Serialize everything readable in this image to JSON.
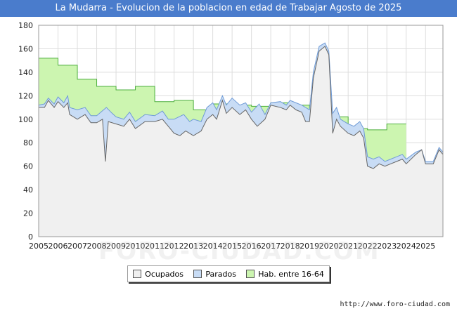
{
  "title": "La Mudarra - Evolucion de la poblacion en edad de Trabajar Agosto de 2025",
  "footer_url": "http://www.foro-ciudad.com",
  "watermark": "FORO-CIUDAD.COM",
  "colors": {
    "title_bg": "#4a7ccc",
    "ocupados_fill": "#f0f0f0",
    "ocupados_line": "#666666",
    "parados_fill": "#c8dcf5",
    "parados_line": "#6f9bd6",
    "hab_fill": "#ccf5b0",
    "hab_line": "#4caf3c",
    "grid": "#dddddd"
  },
  "chart_data": {
    "type": "area",
    "title": "La Mudarra - Evolucion de la poblacion en edad de Trabajar Agosto de 2025",
    "xlabel": "",
    "ylabel": "",
    "xlim": [
      2005,
      2025.9
    ],
    "ylim": [
      0,
      180
    ],
    "y_ticks": [
      0,
      20,
      40,
      60,
      80,
      100,
      120,
      140,
      160,
      180
    ],
    "x_ticks": [
      2005,
      2006,
      2007,
      2008,
      2009,
      2010,
      2011,
      2012,
      2013,
      2014,
      2015,
      2016,
      2017,
      2018,
      2019,
      2020,
      2021,
      2022,
      2023,
      2024,
      2025
    ],
    "grid": true,
    "legend": [
      "Ocupados",
      "Parados",
      "Hab. entre 16-64"
    ],
    "legend_position": "bottom-center",
    "series": [
      {
        "name": "Hab. entre 16-64",
        "kind": "step",
        "points": [
          [
            2005,
            152
          ],
          [
            2006,
            146
          ],
          [
            2007,
            134
          ],
          [
            2008,
            128
          ],
          [
            2009,
            125
          ],
          [
            2010,
            128
          ],
          [
            2011,
            115
          ],
          [
            2012,
            116
          ],
          [
            2013,
            108
          ],
          [
            2014,
            113
          ],
          [
            2015,
            112
          ],
          [
            2016,
            111
          ],
          [
            2017,
            114
          ],
          [
            2018,
            112
          ],
          [
            2019,
            108
          ],
          [
            2020,
            102
          ],
          [
            2021,
            92
          ],
          [
            2022,
            91
          ],
          [
            2023,
            96
          ]
        ],
        "end_x": 2024
      },
      {
        "name": "Parados",
        "kind": "line",
        "points": [
          [
            2005,
            112
          ],
          [
            2005.3,
            113
          ],
          [
            2005.5,
            118
          ],
          [
            2005.8,
            113
          ],
          [
            2006,
            119
          ],
          [
            2006.3,
            114
          ],
          [
            2006.5,
            120
          ],
          [
            2006.6,
            110
          ],
          [
            2007,
            108
          ],
          [
            2007.4,
            110
          ],
          [
            2007.7,
            103
          ],
          [
            2008,
            103
          ],
          [
            2008.5,
            110
          ],
          [
            2008.8,
            105
          ],
          [
            2009,
            102
          ],
          [
            2009.4,
            100
          ],
          [
            2009.7,
            106
          ],
          [
            2010,
            98
          ],
          [
            2010.5,
            104
          ],
          [
            2011,
            103
          ],
          [
            2011.4,
            107
          ],
          [
            2011.7,
            100
          ],
          [
            2012,
            100
          ],
          [
            2012.5,
            104
          ],
          [
            2012.8,
            98
          ],
          [
            2013,
            100
          ],
          [
            2013.4,
            98
          ],
          [
            2013.7,
            110
          ],
          [
            2014,
            114
          ],
          [
            2014.2,
            108
          ],
          [
            2014.5,
            120
          ],
          [
            2014.7,
            112
          ],
          [
            2015,
            118
          ],
          [
            2015.4,
            112
          ],
          [
            2015.7,
            114
          ],
          [
            2016,
            106
          ],
          [
            2016.4,
            113
          ],
          [
            2016.7,
            104
          ],
          [
            2017,
            114
          ],
          [
            2017.5,
            115
          ],
          [
            2017.8,
            112
          ],
          [
            2018,
            116
          ],
          [
            2018.3,
            114
          ],
          [
            2018.6,
            112
          ],
          [
            2018.8,
            110
          ],
          [
            2019,
            108
          ],
          [
            2019.2,
            140
          ],
          [
            2019.5,
            162
          ],
          [
            2019.8,
            165
          ],
          [
            2020,
            158
          ],
          [
            2020.2,
            105
          ],
          [
            2020.4,
            110
          ],
          [
            2020.6,
            100
          ],
          [
            2021,
            96
          ],
          [
            2021.3,
            94
          ],
          [
            2021.6,
            98
          ],
          [
            2021.8,
            92
          ],
          [
            2022,
            68
          ],
          [
            2022.3,
            66
          ],
          [
            2022.6,
            68
          ],
          [
            2022.9,
            64
          ],
          [
            2023.2,
            66
          ],
          [
            2023.5,
            68
          ],
          [
            2023.8,
            70
          ],
          [
            2024,
            66
          ],
          [
            2024.5,
            72
          ],
          [
            2024.8,
            74
          ],
          [
            2025,
            64
          ],
          [
            2025.4,
            64
          ],
          [
            2025.7,
            76
          ],
          [
            2025.9,
            72
          ]
        ]
      },
      {
        "name": "Ocupados",
        "kind": "line",
        "points": [
          [
            2005,
            110
          ],
          [
            2005.3,
            110
          ],
          [
            2005.5,
            116
          ],
          [
            2005.8,
            110
          ],
          [
            2006,
            115
          ],
          [
            2006.3,
            110
          ],
          [
            2006.5,
            114
          ],
          [
            2006.6,
            104
          ],
          [
            2007,
            100
          ],
          [
            2007.4,
            104
          ],
          [
            2007.7,
            97
          ],
          [
            2008,
            97
          ],
          [
            2008.3,
            100
          ],
          [
            2008.45,
            64
          ],
          [
            2008.6,
            98
          ],
          [
            2009,
            96
          ],
          [
            2009.4,
            94
          ],
          [
            2009.7,
            100
          ],
          [
            2010,
            92
          ],
          [
            2010.5,
            98
          ],
          [
            2011,
            98
          ],
          [
            2011.4,
            100
          ],
          [
            2011.7,
            94
          ],
          [
            2012,
            88
          ],
          [
            2012.3,
            86
          ],
          [
            2012.6,
            90
          ],
          [
            2012.8,
            88
          ],
          [
            2013,
            86
          ],
          [
            2013.4,
            90
          ],
          [
            2013.7,
            100
          ],
          [
            2014,
            104
          ],
          [
            2014.2,
            100
          ],
          [
            2014.5,
            116
          ],
          [
            2014.7,
            105
          ],
          [
            2015,
            110
          ],
          [
            2015.4,
            104
          ],
          [
            2015.7,
            108
          ],
          [
            2016,
            100
          ],
          [
            2016.3,
            94
          ],
          [
            2016.7,
            100
          ],
          [
            2017,
            112
          ],
          [
            2017.5,
            110
          ],
          [
            2017.8,
            108
          ],
          [
            2018,
            112
          ],
          [
            2018.3,
            108
          ],
          [
            2018.6,
            106
          ],
          [
            2018.8,
            98
          ],
          [
            2019,
            98
          ],
          [
            2019.2,
            135
          ],
          [
            2019.5,
            158
          ],
          [
            2019.8,
            162
          ],
          [
            2020,
            155
          ],
          [
            2020.2,
            88
          ],
          [
            2020.4,
            100
          ],
          [
            2020.6,
            94
          ],
          [
            2021,
            88
          ],
          [
            2021.3,
            86
          ],
          [
            2021.6,
            90
          ],
          [
            2021.8,
            84
          ],
          [
            2022,
            60
          ],
          [
            2022.3,
            58
          ],
          [
            2022.6,
            62
          ],
          [
            2022.9,
            60
          ],
          [
            2023.2,
            62
          ],
          [
            2023.5,
            64
          ],
          [
            2023.8,
            66
          ],
          [
            2024,
            62
          ],
          [
            2024.5,
            70
          ],
          [
            2024.8,
            74
          ],
          [
            2025,
            62
          ],
          [
            2025.4,
            62
          ],
          [
            2025.7,
            74
          ],
          [
            2025.9,
            70
          ]
        ]
      }
    ]
  }
}
